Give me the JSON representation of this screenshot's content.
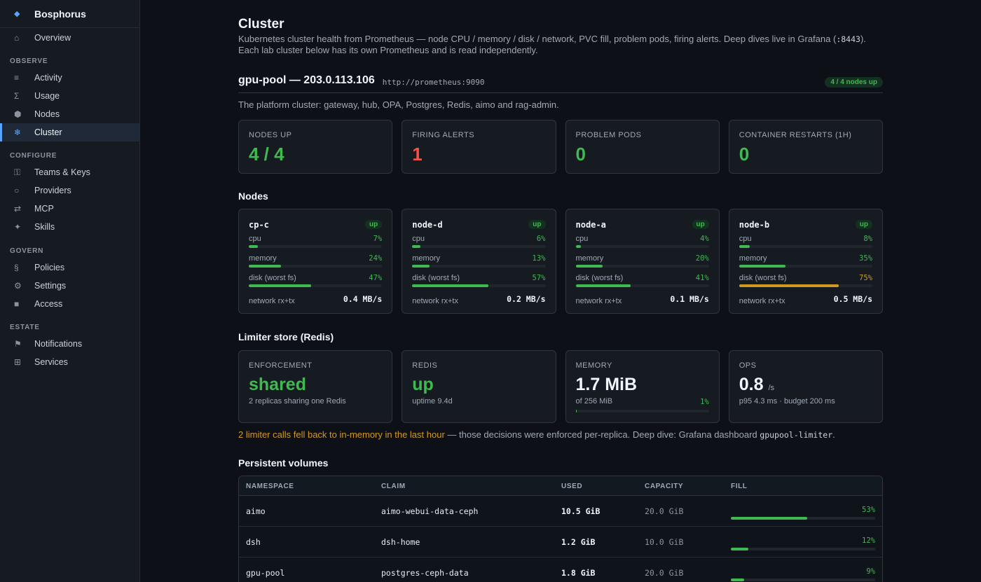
{
  "app": {
    "name": "Bosphorus",
    "logo_icon": "diamond-icon"
  },
  "sidebar": {
    "overview": {
      "label": "Overview",
      "icon": "home-icon"
    },
    "sections": [
      {
        "title": "OBSERVE",
        "items": [
          {
            "label": "Activity",
            "icon": "list-icon"
          },
          {
            "label": "Usage",
            "icon": "sigma-icon"
          },
          {
            "label": "Nodes",
            "icon": "hexagon-icon"
          },
          {
            "label": "Cluster",
            "icon": "snowflake-icon",
            "active": true
          }
        ]
      },
      {
        "title": "CONFIGURE",
        "items": [
          {
            "label": "Teams & Keys",
            "icon": "key-icon"
          },
          {
            "label": "Providers",
            "icon": "circle-icon"
          },
          {
            "label": "MCP",
            "icon": "arrows-icon"
          },
          {
            "label": "Skills",
            "icon": "sparkle-icon"
          }
        ]
      },
      {
        "title": "GOVERN",
        "items": [
          {
            "label": "Policies",
            "icon": "section-icon"
          },
          {
            "label": "Settings",
            "icon": "gear-icon"
          },
          {
            "label": "Access",
            "icon": "square-icon"
          }
        ]
      },
      {
        "title": "ESTATE",
        "items": [
          {
            "label": "Notifications",
            "icon": "flag-icon"
          },
          {
            "label": "Services",
            "icon": "grid-icon"
          }
        ]
      }
    ]
  },
  "page": {
    "title": "Cluster",
    "desc_before": "Kubernetes cluster health from Prometheus — node CPU / memory / disk / network, PVC fill, problem pods, firing alerts. Deep dives live in Grafana (",
    "desc_code": ":8443",
    "desc_after": "). Each lab cluster below has its own Prometheus and is read independently."
  },
  "cluster": {
    "name": "gpu-pool — 203.0.113.106",
    "url": "http://prometheus:9090",
    "badge": "4 / 4 nodes up",
    "description": "The platform cluster: gateway, hub, OPA, Postgres, Redis, aimo and rag-admin."
  },
  "stats": [
    {
      "label": "NODES UP",
      "value": "4 / 4",
      "color": "#3fb950"
    },
    {
      "label": "FIRING ALERTS",
      "value": "1",
      "color": "#f85149"
    },
    {
      "label": "PROBLEM PODS",
      "value": "0",
      "color": "#3fb950"
    },
    {
      "label": "CONTAINER RESTARTS (1H)",
      "value": "0",
      "color": "#3fb950"
    }
  ],
  "nodes_title": "Nodes",
  "nodes": [
    {
      "name": "cp-c",
      "status": "up",
      "cpu": "7%",
      "memory": "24%",
      "disk": "47%",
      "network": "0.4 MB/s",
      "cpu_frac": 0.07,
      "memory_frac": 0.24,
      "disk_frac": 0.47
    },
    {
      "name": "node-d",
      "status": "up",
      "cpu": "6%",
      "memory": "13%",
      "disk": "57%",
      "network": "0.2 MB/s",
      "cpu_frac": 0.06,
      "memory_frac": 0.13,
      "disk_frac": 0.57
    },
    {
      "name": "node-a",
      "status": "up",
      "cpu": "4%",
      "memory": "20%",
      "disk": "41%",
      "network": "0.1 MB/s",
      "cpu_frac": 0.04,
      "memory_frac": 0.2,
      "disk_frac": 0.41
    },
    {
      "name": "node-b",
      "status": "up",
      "cpu": "8%",
      "memory": "35%",
      "disk": "75%",
      "network": "0.5 MB/s",
      "cpu_frac": 0.08,
      "memory_frac": 0.35,
      "disk_frac": 0.75,
      "disk_warn": true
    }
  ],
  "metric_labels": {
    "cpu": "cpu",
    "memory": "memory",
    "disk": "disk (worst fs)",
    "network": "network rx+tx"
  },
  "limiter": {
    "title": "Limiter store (Redis)",
    "enforcement": {
      "label": "ENFORCEMENT",
      "value": "shared",
      "sub": "2 replicas sharing one Redis"
    },
    "redis": {
      "label": "REDIS",
      "value": "up",
      "sub": "uptime 9.4d"
    },
    "memory": {
      "label": "MEMORY",
      "value": "1.7 MiB",
      "sub": "of 256 MiB",
      "pct": "1%",
      "frac": 0.01
    },
    "ops": {
      "label": "OPS",
      "value": "0.8",
      "unit": "/s",
      "sub": "p95 4.3 ms · budget 200 ms"
    },
    "fallback_warn": "2 limiter calls fell back to in-memory in the last hour",
    "fallback_rest": " — those decisions were enforced per-replica. Deep dive: Grafana dashboard ",
    "fallback_code": "gpupool-limiter",
    "fallback_end": "."
  },
  "pv": {
    "title": "Persistent volumes",
    "columns": [
      "NAMESPACE",
      "CLAIM",
      "USED",
      "CAPACITY",
      "FILL"
    ],
    "rows": [
      {
        "namespace": "aimo",
        "claim": "aimo-webui-data-ceph",
        "used": "10.5 GiB",
        "capacity": "20.0 GiB",
        "fill": "53%",
        "frac": 0.53
      },
      {
        "namespace": "dsh",
        "claim": "dsh-home",
        "used": "1.2 GiB",
        "capacity": "10.0 GiB",
        "fill": "12%",
        "frac": 0.12
      },
      {
        "namespace": "gpu-pool",
        "claim": "postgres-ceph-data",
        "used": "1.8 GiB",
        "capacity": "20.0 GiB",
        "fill": "9%",
        "frac": 0.09
      }
    ]
  }
}
